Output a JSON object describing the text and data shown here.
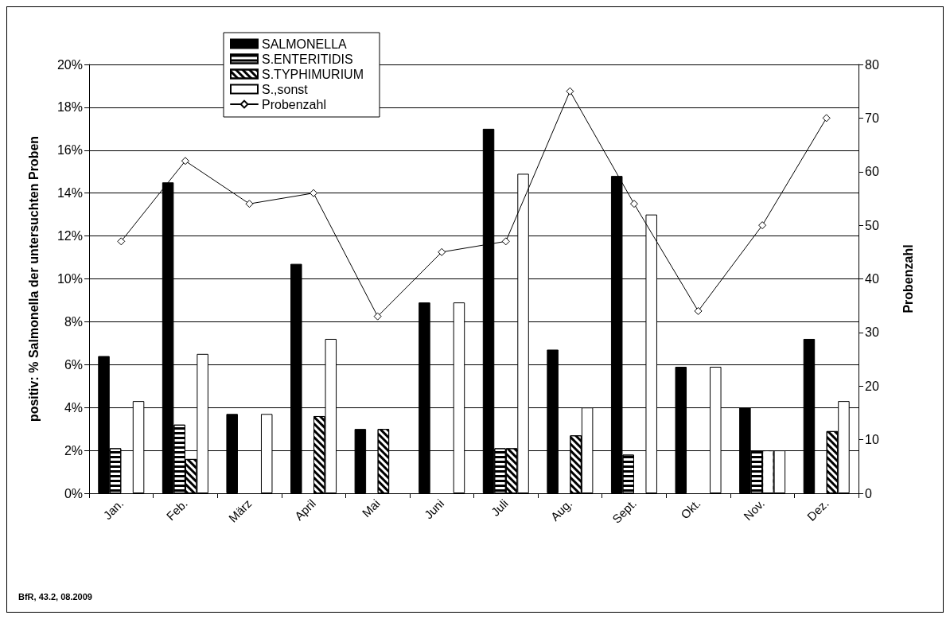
{
  "chart_data": {
    "type": "bar",
    "ylabel": "positiv: % Salmonella der untersuchten Proben",
    "y2label": "Probenzahl",
    "categories": [
      "Jan.",
      "Feb.",
      "März",
      "April",
      "Mai",
      "Juni",
      "Juli",
      "Aug.",
      "Sept.",
      "Okt.",
      "Nov.",
      "Dez."
    ],
    "series": [
      {
        "name": "SALMONELLA",
        "color": "#000000",
        "values": [
          6.4,
          14.5,
          3.7,
          10.7,
          3.0,
          8.9,
          17.0,
          6.7,
          14.8,
          5.9,
          4.0,
          7.2
        ]
      },
      {
        "name": "S.ENTERITIDIS",
        "color": "#000000",
        "values": [
          2.1,
          3.2,
          null,
          null,
          null,
          null,
          2.1,
          null,
          1.8,
          null,
          2.0,
          null
        ]
      },
      {
        "name": "S.TYPHIMURIUM",
        "color": "#000000",
        "colors": [
          "#000000",
          "#000000",
          "#000000",
          "#000000",
          "#000000",
          "#000000",
          "#000000",
          "#000000",
          "#000000",
          "#000000",
          "#ffffff",
          "#000000"
        ],
        "values": [
          null,
          1.6,
          null,
          3.6,
          3.0,
          null,
          2.1,
          2.7,
          null,
          null,
          2.0,
          2.9
        ]
      },
      {
        "name": "S.,sonst",
        "color": "#ffffff",
        "values": [
          4.3,
          6.5,
          3.7,
          7.2,
          null,
          8.9,
          14.9,
          4.0,
          13.0,
          5.9,
          2.0,
          4.3
        ]
      },
      {
        "name": "Probenzahl",
        "type": "line",
        "axis": "y2",
        "color": "#000000",
        "values": [
          47,
          62,
          54,
          56,
          33,
          45,
          47,
          75,
          54,
          34,
          50,
          70
        ]
      }
    ],
    "ylim": [
      0,
      20
    ],
    "yticks": [
      {
        "value": 0,
        "label": "0%"
      },
      {
        "value": 2,
        "label": "2%"
      },
      {
        "value": 4,
        "label": "4%"
      },
      {
        "value": 6,
        "label": "6%"
      },
      {
        "value": 8,
        "label": "8%"
      },
      {
        "value": 10,
        "label": "10%"
      },
      {
        "value": 12,
        "label": "12%"
      },
      {
        "value": 14,
        "label": "14%"
      },
      {
        "value": 16,
        "label": "16%"
      },
      {
        "value": 18,
        "label": "18%"
      },
      {
        "value": 20,
        "label": "20%"
      }
    ],
    "y2lim": [
      0,
      80
    ],
    "y2ticks": [
      0,
      10,
      20,
      30,
      40,
      50,
      60,
      70,
      80
    ],
    "grid": "y",
    "legend": "top left",
    "marker": "diamond",
    "line_style": "solid",
    "annotations": [
      "BfR, 43.2, 08.2009"
    ]
  }
}
